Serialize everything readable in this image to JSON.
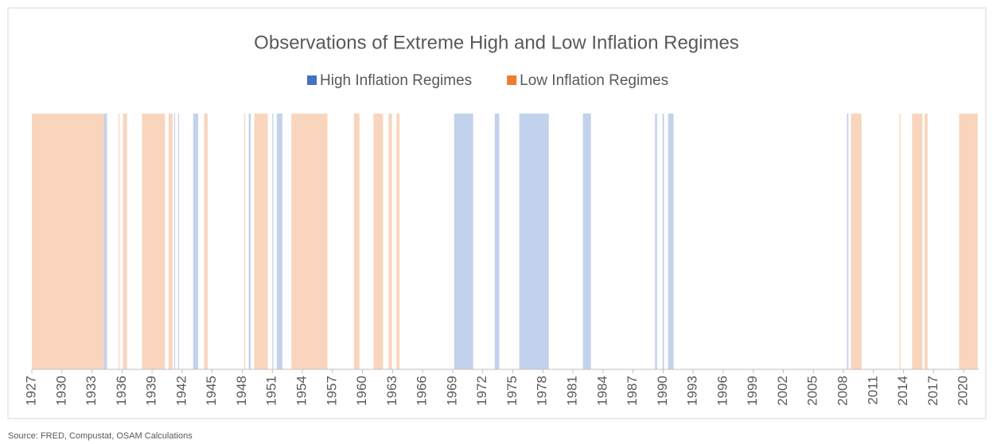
{
  "chart_data": {
    "type": "span",
    "title": "Observations of Extreme High and Low Inflation Regimes",
    "source": "Source: FRED, Compustat, OSAM Calculations",
    "legend": "top",
    "xlim": [
      1927,
      2021.5
    ],
    "xticks": [
      1927,
      1930,
      1933,
      1936,
      1939,
      1942,
      1945,
      1948,
      1951,
      1954,
      1957,
      1960,
      1963,
      1966,
      1969,
      1972,
      1975,
      1978,
      1981,
      1984,
      1987,
      1990,
      1993,
      1996,
      1999,
      2002,
      2005,
      2008,
      2011,
      2014,
      2017,
      2020
    ],
    "series": [
      {
        "name": "High Inflation Regimes",
        "color": "#4472c4",
        "spans": [
          [
            1934.2,
            1934.5
          ],
          [
            1941.2,
            1941.3
          ],
          [
            1941.6,
            1941.7
          ],
          [
            1943.1,
            1943.6
          ],
          [
            1948.65,
            1948.85
          ],
          [
            1951.0,
            1951.1
          ],
          [
            1951.45,
            1952.0
          ],
          [
            1969.15,
            1971.05
          ],
          [
            1973.2,
            1973.65
          ],
          [
            1975.65,
            1978.6
          ],
          [
            1982.0,
            1982.8
          ],
          [
            1989.2,
            1989.4
          ],
          [
            1989.95,
            1990.1
          ],
          [
            1990.5,
            1991.05
          ],
          [
            2008.35,
            2008.5
          ]
        ]
      },
      {
        "name": "Low Inflation Regimes",
        "color": "#ed7d31",
        "spans": [
          [
            1927.0,
            1934.2
          ],
          [
            1935.65,
            1935.75
          ],
          [
            1936.1,
            1936.5
          ],
          [
            1938.0,
            1940.3
          ],
          [
            1940.65,
            1941.05
          ],
          [
            1944.2,
            1944.55
          ],
          [
            1948.2,
            1948.3
          ],
          [
            1949.2,
            1950.55
          ],
          [
            1952.9,
            1956.5
          ],
          [
            1959.15,
            1959.7
          ],
          [
            1961.1,
            1962.05
          ],
          [
            1962.6,
            1962.95
          ],
          [
            1963.4,
            1963.7
          ],
          [
            2008.75,
            2009.8
          ],
          [
            2013.6,
            2013.7
          ],
          [
            2014.85,
            2015.9
          ],
          [
            2016.1,
            2016.4
          ],
          [
            2019.55,
            2021.4
          ]
        ]
      }
    ]
  }
}
